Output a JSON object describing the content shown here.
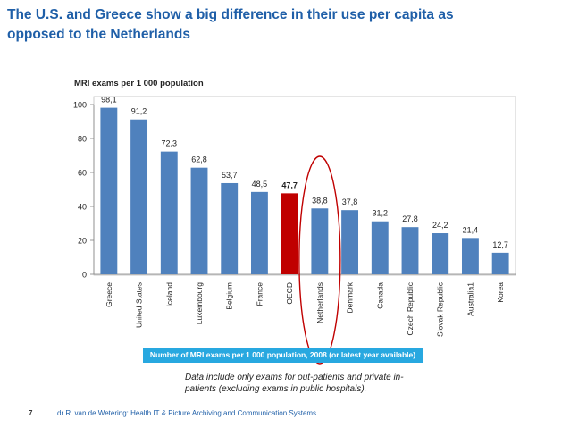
{
  "slide": {
    "title_line1": "The U.S. and Greece show a big difference in their use per capita as",
    "title_line2": "opposed to the Netherlands",
    "legend_text": "Number of MRI exams per 1 000 population, 2008 (or latest year available)",
    "note_line1": "Data include only exams for out-patients and private in-",
    "note_line2": "patients (excluding exams in public hospitals).",
    "page_number": "7",
    "footer": "dr R. van de Wetering: Health IT & Picture Archiving  and Communication Systems"
  },
  "colors": {
    "title": "#1f5fa8",
    "bar": "#4f81bd",
    "bar_highlight": "#c00000",
    "circle": "#c00000",
    "legend_bg": "#28a8e0"
  },
  "chart_data": {
    "type": "bar",
    "title": "MRI exams per 1 000 population",
    "xlabel": "",
    "ylabel": "MRI exams per 1 000 population",
    "ylim": [
      0,
      100
    ],
    "yticks": [
      0,
      20,
      40,
      60,
      80,
      100
    ],
    "categories": [
      "Greece",
      "United States",
      "Iceland",
      "Luxembourg",
      "Belgium",
      "France",
      "OECD",
      "Netherlands",
      "Denmark",
      "Canada",
      "Czech Republic",
      "Slovak Republic",
      "Australia1",
      "Korea"
    ],
    "values": [
      98.1,
      91.2,
      72.3,
      62.8,
      53.7,
      48.5,
      47.7,
      38.8,
      37.8,
      31.2,
      27.8,
      24.2,
      21.4,
      12.7
    ],
    "value_labels": [
      "98,1",
      "91,2",
      "72,3",
      "62,8",
      "53,7",
      "48,5",
      "47,7",
      "38,8",
      "37,8",
      "31,2",
      "27,8",
      "24,2",
      "21,4",
      "12,7"
    ],
    "highlight": "OECD",
    "circled": "Netherlands",
    "grid": false
  }
}
